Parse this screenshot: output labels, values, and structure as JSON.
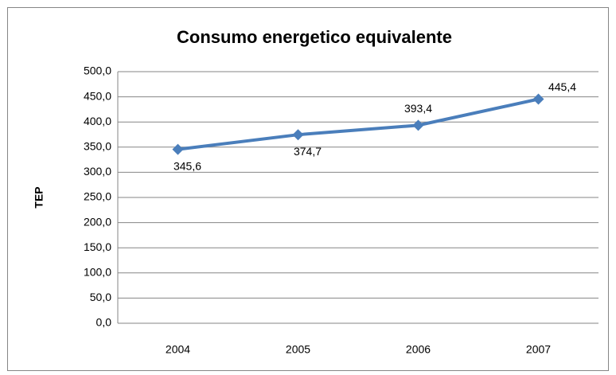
{
  "chart_data": {
    "type": "line",
    "title": "Consumo energetico equivalente",
    "y_label": "TEP",
    "categories": [
      "2004",
      "2005",
      "2006",
      "2007"
    ],
    "values": [
      345.6,
      374.7,
      393.4,
      445.4
    ],
    "value_labels": [
      "345,6",
      "374,7",
      "393,4",
      "445,4"
    ],
    "color": "#4a7ebb",
    "ylim": [
      0,
      500
    ],
    "yticks": [
      {
        "value": 0,
        "label": "0,0"
      },
      {
        "value": 50,
        "label": "50,0"
      },
      {
        "value": 100,
        "label": "100,0"
      },
      {
        "value": 150,
        "label": "150,0"
      },
      {
        "value": 200,
        "label": "200,0"
      },
      {
        "value": 250,
        "label": "250,0"
      },
      {
        "value": 300,
        "label": "300,0"
      },
      {
        "value": 350,
        "label": "350,0"
      },
      {
        "value": 400,
        "label": "400,0"
      },
      {
        "value": 450,
        "label": "450,0"
      },
      {
        "value": 500,
        "label": "500,0"
      }
    ],
    "grid": true
  }
}
